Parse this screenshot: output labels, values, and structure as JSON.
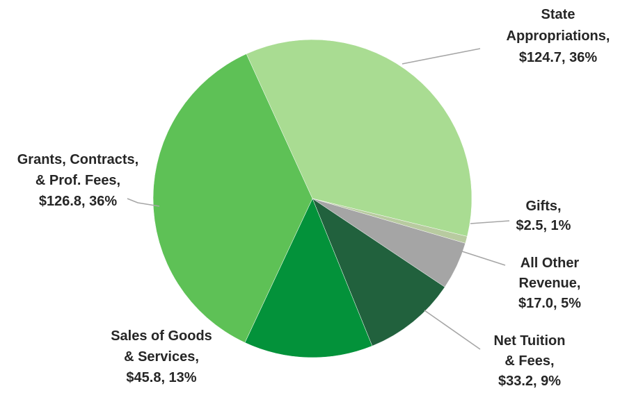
{
  "chart_data": {
    "type": "pie",
    "title": "",
    "slices": [
      {
        "label": "State Appropriations",
        "value": 124.7,
        "value_text": "$124.7",
        "percent_text": "36%",
        "color": "#a9dc92"
      },
      {
        "label": "Gifts",
        "value": 2.5,
        "value_text": "$2.5",
        "percent_text": "1%",
        "color": "#b8cba0"
      },
      {
        "label": "All Other Revenue",
        "value": 17.0,
        "value_text": "$17.0",
        "percent_text": "5%",
        "color": "#a5a5a5"
      },
      {
        "label": "Net Tuition & Fees",
        "value": 33.2,
        "value_text": "$33.2",
        "percent_text": "9%",
        "color": "#21613d"
      },
      {
        "label": "Sales of Goods & Services",
        "value": 45.8,
        "value_text": "$45.8",
        "percent_text": "13%",
        "color": "#03923a"
      },
      {
        "label": "Grants, Contracts, & Prof. Fees",
        "value": 126.8,
        "value_text": "$126.8",
        "percent_text": "36%",
        "color": "#5ec156"
      }
    ],
    "data_labels": [
      [
        "State",
        "Appropriations,",
        "$124.7, 36%"
      ],
      [
        "Gifts,",
        "$2.5, 1%"
      ],
      [
        "All Other",
        "Revenue,",
        "$17.0, 5%"
      ],
      [
        "Net Tuition",
        "& Fees,",
        "$33.2, 9%"
      ],
      [
        "Sales of Goods",
        "& Services,",
        "$45.8, 13%"
      ],
      [
        "Grants, Contracts,",
        "& Prof. Fees,",
        "$126.8, 36%"
      ]
    ],
    "legend": "none",
    "leader_line_color": "#a6a6a6"
  }
}
